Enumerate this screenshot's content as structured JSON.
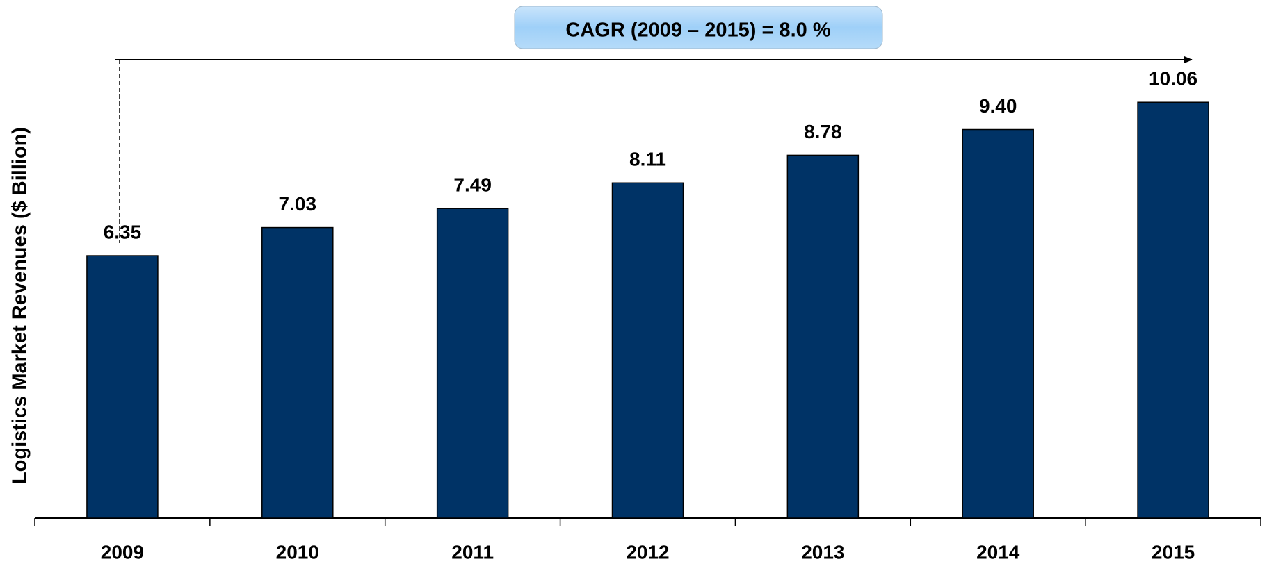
{
  "chart_data": {
    "type": "bar",
    "annotation": "CAGR (2009 – 2015) = 8.0 %",
    "y_label": "Logistics Market Revenues ($ Billion)",
    "categories": [
      "2009",
      "2010",
      "2011",
      "2012",
      "2013",
      "2014",
      "2015"
    ],
    "values": [
      6.35,
      7.03,
      7.49,
      8.11,
      8.78,
      9.4,
      10.06
    ],
    "value_labels": [
      "6.35",
      "7.03",
      "7.49",
      "8.11",
      "8.78",
      "9.40",
      "10.06"
    ],
    "color": "#003366",
    "ylim": [
      0,
      12.5
    ]
  }
}
